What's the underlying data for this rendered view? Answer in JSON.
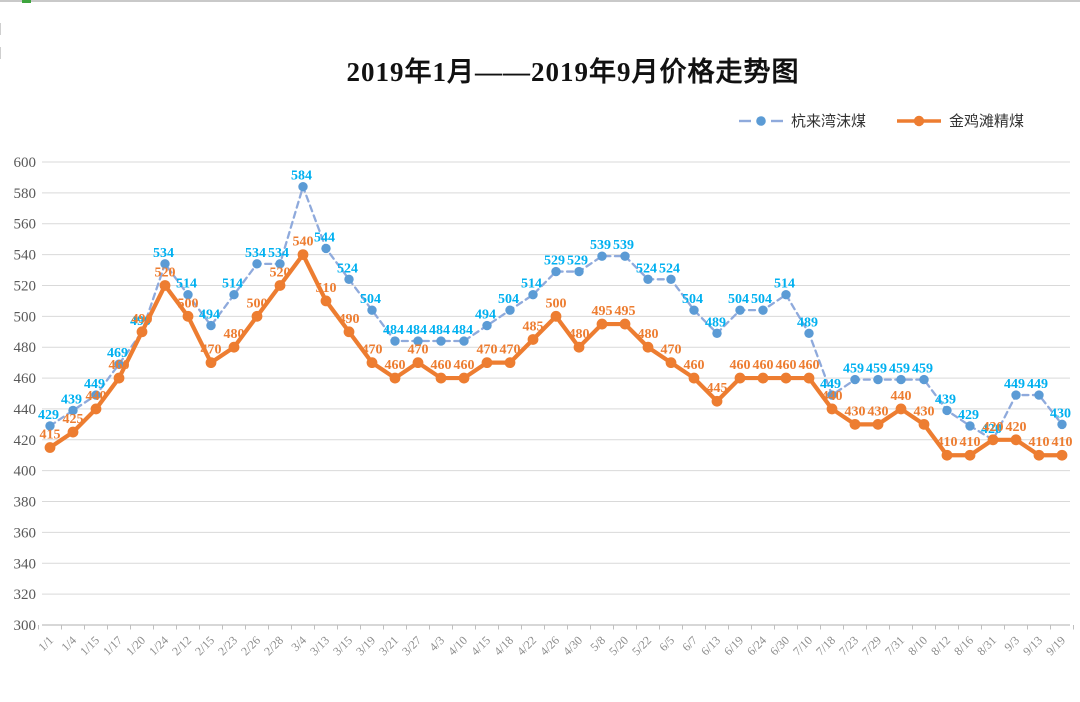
{
  "title": {
    "text": "2019年1月——2019年9月价格走势图"
  },
  "legend": {
    "items": [
      {
        "label": "杭来湾沫煤",
        "marker_color": "#5B9BD5",
        "line_color": "#8FAADC",
        "line_style": "dashed",
        "label_color": "#00B0F0"
      },
      {
        "label": "金鸡滩精煤",
        "marker_color": "#ED7D31",
        "line_color": "#ED7D31",
        "line_style": "solid",
        "label_color": "#ED7D31"
      }
    ]
  },
  "chart_data": {
    "type": "line",
    "title": "2019年1月——2019年9月价格走势图",
    "xlabel": "",
    "ylabel": "",
    "ylim": [
      300,
      600
    ],
    "yticks": [
      600,
      580,
      560,
      540,
      520,
      500,
      480,
      460,
      440,
      420,
      400,
      380,
      360,
      340,
      320,
      300
    ],
    "grid": true,
    "legend_position": "top-right",
    "data_labels": true,
    "categories": [
      "1/1",
      "1/4",
      "1/15",
      "1/17",
      "1/20",
      "1/24",
      "2/12",
      "2/15",
      "2/23",
      "2/26",
      "2/28",
      "3/4",
      "3/13",
      "3/15",
      "3/19",
      "3/21",
      "3/27",
      "4/3",
      "4/10",
      "4/15",
      "4/18",
      "4/22",
      "4/26",
      "4/30",
      "5/8",
      "5/20",
      "5/22",
      "6/5",
      "6/7",
      "6/13",
      "6/19",
      "6/24",
      "6/30",
      "7/10",
      "7/18",
      "7/23",
      "7/29",
      "7/31",
      "8/10",
      "8/12",
      "8/16",
      "8/31",
      "9/3",
      "9/13",
      "9/19"
    ],
    "series": [
      {
        "name": "杭来湾沫煤",
        "line": "dashed",
        "line_color": "#8FAADC",
        "marker_color": "#5B9BD5",
        "label_color": "#00B0F0",
        "values": [
          429,
          439,
          449,
          469,
          490,
          534,
          514,
          494,
          514,
          534,
          534,
          584,
          544,
          524,
          504,
          484,
          484,
          484,
          484,
          494,
          504,
          514,
          529,
          529,
          539,
          539,
          524,
          524,
          504,
          489,
          504,
          504,
          514,
          489,
          449,
          459,
          459,
          459,
          459,
          439,
          429,
          420,
          449,
          449,
          430
        ]
      },
      {
        "name": "金鸡滩精煤",
        "line": "solid",
        "line_color": "#ED7D31",
        "marker_color": "#ED7D31",
        "label_color": "#ED7D31",
        "values": [
          415,
          425,
          440,
          460,
          490,
          520,
          500,
          470,
          480,
          500,
          520,
          540,
          510,
          490,
          470,
          460,
          470,
          460,
          460,
          470,
          470,
          485,
          500,
          480,
          495,
          495,
          480,
          470,
          460,
          445,
          460,
          460,
          460,
          460,
          440,
          430,
          430,
          440,
          430,
          410,
          410,
          420,
          420,
          410,
          410
        ]
      }
    ],
    "colors": {
      "gridline": "#D9D9D9",
      "axis_line": "#BFBFBF",
      "y_tick_label": "#595959",
      "x_tick_label": "#8C8C8C"
    }
  }
}
